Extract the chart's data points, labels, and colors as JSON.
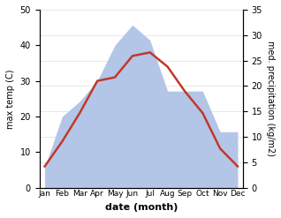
{
  "months": [
    "Jan",
    "Feb",
    "Mar",
    "Apr",
    "May",
    "Jun",
    "Jul",
    "Aug",
    "Sep",
    "Oct",
    "Nov",
    "Dec"
  ],
  "temperature": [
    6,
    13,
    21,
    30,
    31,
    37,
    38,
    34,
    27,
    21,
    11,
    6
  ],
  "precipitation": [
    4,
    14,
    17,
    21,
    28,
    32,
    29,
    19,
    19,
    19,
    11,
    11
  ],
  "temp_color": "#c0392b",
  "precip_color_fill": "#b3c6e7",
  "temp_ylim": [
    0,
    50
  ],
  "precip_ylim": [
    0,
    35
  ],
  "temp_yticks": [
    0,
    10,
    20,
    30,
    40,
    50
  ],
  "precip_yticks": [
    0,
    5,
    10,
    15,
    20,
    25,
    30,
    35
  ],
  "xlabel": "date (month)",
  "ylabel_left": "max temp (C)",
  "ylabel_right": "med. precipitation (kg/m2)",
  "bg_color": "#ffffff"
}
